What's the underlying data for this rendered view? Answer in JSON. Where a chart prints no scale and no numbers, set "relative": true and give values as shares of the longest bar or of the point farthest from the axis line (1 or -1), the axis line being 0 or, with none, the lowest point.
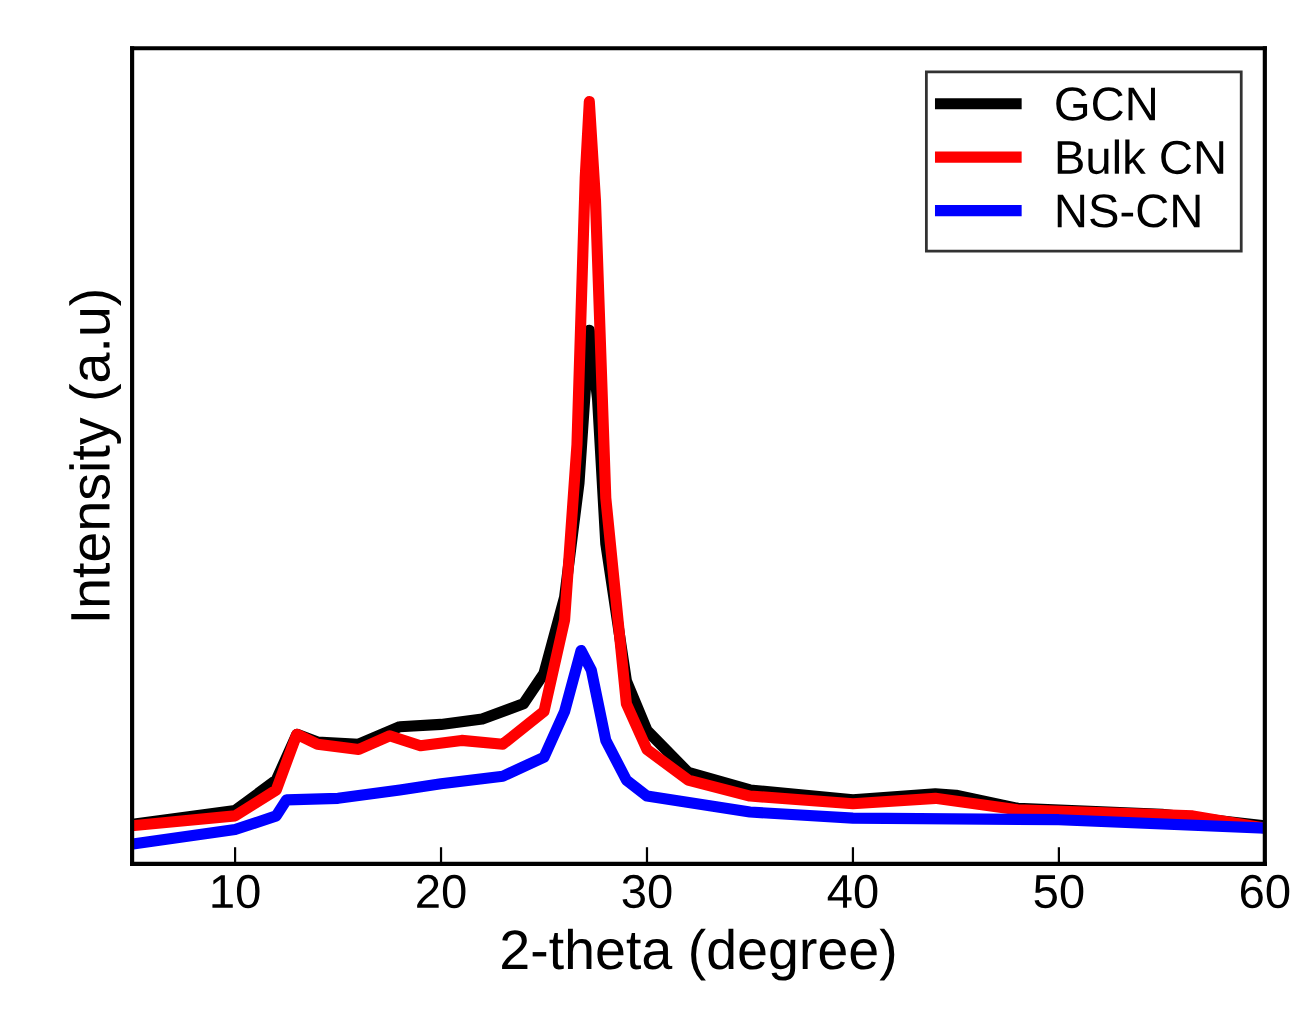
{
  "chart_data": {
    "type": "line",
    "relative": true,
    "xlabel": "2-theta (degree)",
    "ylabel": "Intensity (a.u)",
    "xlim": [
      5,
      60
    ],
    "xticks": [
      10,
      20,
      30,
      40,
      50,
      60
    ],
    "legend": "top right",
    "grid": false,
    "tick_labels": "x",
    "series": [
      {
        "name": "GCN",
        "color": "#000000",
        "x": [
          5,
          10,
          12,
          13,
          14,
          16,
          18,
          20,
          22,
          24,
          25,
          26,
          26.7,
          27.2,
          27.6,
          28,
          29,
          30,
          32,
          35,
          40,
          44,
          45,
          48,
          55,
          60
        ],
        "values": [
          0.052,
          0.07,
          0.11,
          0.17,
          0.16,
          0.157,
          0.18,
          0.183,
          0.19,
          0.21,
          0.25,
          0.35,
          0.5,
          0.7,
          0.61,
          0.42,
          0.24,
          0.175,
          0.12,
          0.097,
          0.084,
          0.092,
          0.09,
          0.073,
          0.065,
          0.05
        ]
      },
      {
        "name": "Bulk CN",
        "color": "#ff0000",
        "x": [
          5,
          10,
          12,
          13,
          14,
          16,
          17.5,
          19,
          21,
          23,
          25,
          26,
          26.6,
          27.0,
          27.2,
          27.5,
          28,
          29,
          30,
          32,
          35,
          40,
          44,
          48,
          56.5,
          60
        ],
        "values": [
          0.05,
          0.063,
          0.097,
          0.17,
          0.157,
          0.15,
          0.168,
          0.155,
          0.162,
          0.157,
          0.2,
          0.32,
          0.55,
          0.9,
          1,
          0.87,
          0.48,
          0.21,
          0.15,
          0.11,
          0.089,
          0.079,
          0.086,
          0.071,
          0.063,
          0.047
        ]
      },
      {
        "name": "NS-CN",
        "color": "#0000ff",
        "x": [
          5,
          10,
          12,
          12.5,
          15,
          18,
          20,
          23,
          25,
          26,
          26.8,
          27.3,
          28,
          29,
          30,
          35,
          40,
          50,
          60
        ],
        "values": [
          0.026,
          0.045,
          0.063,
          0.084,
          0.086,
          0.097,
          0.105,
          0.115,
          0.14,
          0.2,
          0.28,
          0.254,
          0.162,
          0.11,
          0.089,
          0.068,
          0.06,
          0.058,
          0.047
        ]
      }
    ]
  }
}
